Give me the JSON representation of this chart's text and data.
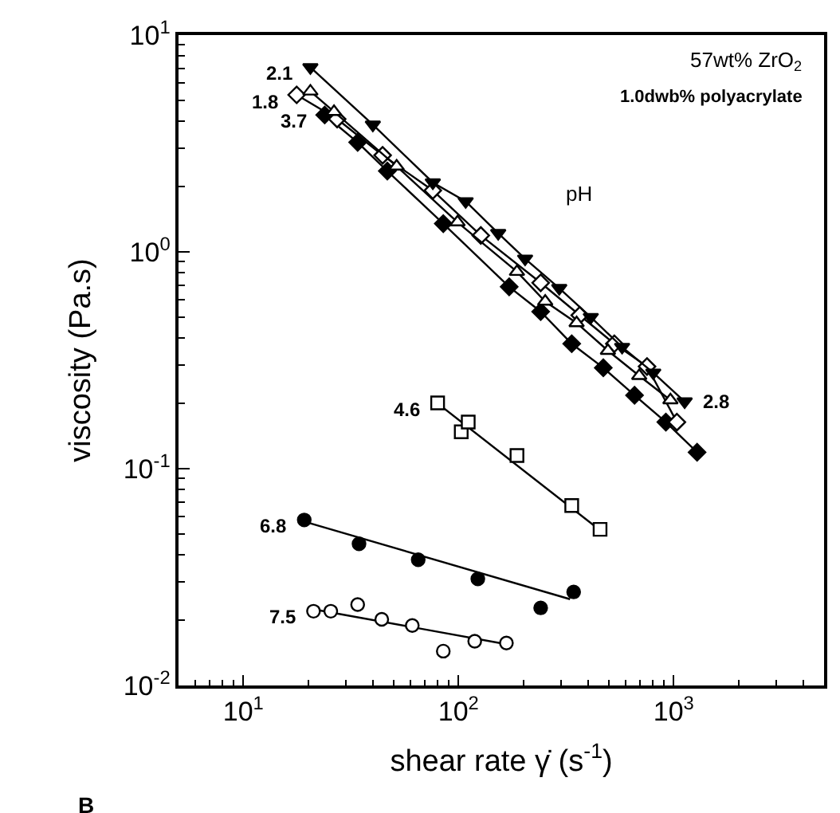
{
  "chart_data": {
    "type": "scatter",
    "xlabel": "shear rate γ̇ (s$^{-1}$)",
    "ylabel": "viscosity (Pa.s)",
    "log": "xy",
    "xlim": [
      5,
      5000
    ],
    "ylim": [
      0.01,
      10
    ],
    "xticks": [
      {
        "value": 10,
        "label": "10$^{1}$"
      },
      {
        "value": 100,
        "label": "10$^{2}$"
      },
      {
        "value": 1000,
        "label": "10$^{3}$"
      }
    ],
    "yticks": [
      {
        "value": 0.01,
        "label": "10$^{-2}$"
      },
      {
        "value": 0.1,
        "label": "10$^{-1}$"
      },
      {
        "value": 1,
        "label": "10$^{0}$"
      },
      {
        "value": 10,
        "label": "10$^{1}$"
      }
    ],
    "series": [
      {
        "type": "line",
        "color": "#000000",
        "marker": "triangle-down",
        "x": [
          20.5,
          40,
          76,
          108,
          153,
          204,
          294,
          412,
          576,
          804,
          1125
        ],
        "values": [
          7.1,
          3.86,
          2.09,
          1.71,
          1.22,
          0.93,
          0.68,
          0.5,
          0.364,
          0.277,
          0.204
        ]
      },
      {
        "type": "line",
        "color": "#000000",
        "marker": "triangle-up-open",
        "x": [
          20.5,
          26.4,
          51.6,
          99,
          187,
          253,
          354,
          495,
          692,
          966
        ],
        "values": [
          5.5,
          4.43,
          2.48,
          1.37,
          0.81,
          0.59,
          0.47,
          0.35,
          0.268,
          0.207
        ]
      },
      {
        "type": "line",
        "color": "#000000",
        "marker": "diamond-open",
        "x": [
          17.7,
          27.3,
          44.4,
          76,
          127,
          241,
          366,
          530,
          752,
          1035
        ],
        "values": [
          5.3,
          4.1,
          2.79,
          1.92,
          1.19,
          0.72,
          0.51,
          0.377,
          0.296,
          0.164
        ]
      },
      {
        "type": "line",
        "color": "#000000",
        "marker": "diamond",
        "x": [
          23.9,
          34,
          46.7,
          85,
          172,
          241,
          336,
          471,
          658,
          920,
          1285
        ],
        "values": [
          4.28,
          3.2,
          2.36,
          1.35,
          0.69,
          0.53,
          0.377,
          0.292,
          0.218,
          0.164,
          0.119
        ]
      },
      {
        "color": "#000000",
        "marker": "square-open",
        "x": [
          80,
          103,
          111,
          187,
          336,
          455
        ],
        "values": [
          0.201,
          0.148,
          0.164,
          0.115,
          0.0676,
          0.0525
        ]
      },
      {
        "type": "line",
        "color": "#000000",
        "marker": "none",
        "x": [
          80,
          455
        ],
        "values": [
          0.2,
          0.052
        ]
      },
      {
        "color": "#000000",
        "marker": "circle",
        "x": [
          19.2,
          34.5,
          65,
          123,
          241,
          343
        ],
        "values": [
          0.058,
          0.045,
          0.038,
          0.031,
          0.0228,
          0.027
        ]
      },
      {
        "type": "line",
        "color": "#000000",
        "marker": "none",
        "x": [
          19.2,
          330
        ],
        "values": [
          0.057,
          0.025
        ]
      },
      {
        "color": "#000000",
        "marker": "circle-open",
        "x": [
          21.2,
          25.5,
          34,
          44,
          61,
          85,
          119,
          167
        ],
        "values": [
          0.022,
          0.022,
          0.0236,
          0.0202,
          0.0189,
          0.0144,
          0.016,
          0.0157
        ]
      },
      {
        "type": "line",
        "color": "#000000",
        "marker": "none",
        "x": [
          21,
          167
        ],
        "values": [
          0.0225,
          0.0155
        ]
      }
    ],
    "annotations": [
      {
        "text": "2.1",
        "x": 20.5,
        "y": 7.1
      },
      {
        "text": "1.8",
        "x": 17.7,
        "y": 5.3
      },
      {
        "text": "3.7",
        "x": 23.9,
        "y": 4.28
      },
      {
        "text": "2.8",
        "x": 1125,
        "y": 0.204
      },
      {
        "text": "4.6",
        "x": 80,
        "y": 0.201
      },
      {
        "text": "6.8",
        "x": 19.2,
        "y": 0.058
      },
      {
        "text": "7.5",
        "x": 21.2,
        "y": 0.022
      },
      "57wt% ZrO$_{2}$",
      "1.0dwb% polyacrylate",
      "pH",
      "B"
    ]
  }
}
